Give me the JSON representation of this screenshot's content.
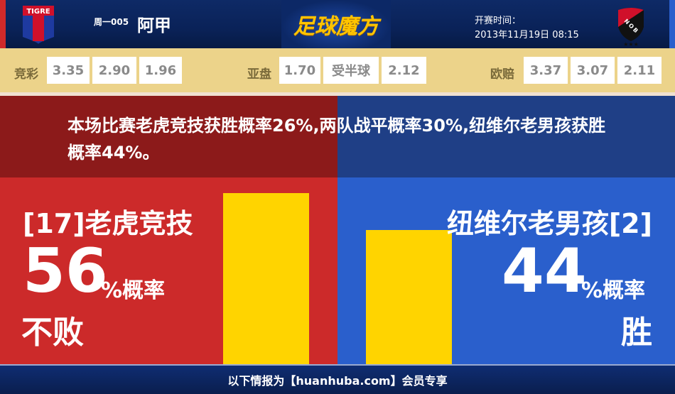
{
  "header": {
    "home_logo_text": "TIGRE",
    "away_logo_text": "NOB",
    "round": "周一005",
    "league": "阿甲",
    "brand": "足球魔方",
    "kickoff_label": "开赛时间：",
    "kickoff_time": "2013年11月19日 08:15"
  },
  "odds": {
    "jingcai": {
      "label": "竞彩",
      "values": [
        "3.35",
        "2.90",
        "1.96"
      ]
    },
    "asian": {
      "label": "亚盘",
      "values": [
        "1.70",
        "受半球",
        "2.12"
      ]
    },
    "euro": {
      "label": "欧赔",
      "values": [
        "3.37",
        "3.07",
        "2.11"
      ]
    }
  },
  "summary": "本场比赛老虎竞技获胜概率26%,两队战平概率30%,纽维尔老男孩获胜概率44%。",
  "home": {
    "team": "[17]老虎竞技",
    "percent": "56",
    "percent_suffix": "%概率",
    "outcome": "不败",
    "probability": 56
  },
  "away": {
    "team": "纽维尔老男孩[2]",
    "percent": "44",
    "percent_suffix": "%概率",
    "outcome": "胜",
    "probability": 44
  },
  "footer": "以下情报为【huanhuba.com】会员专享",
  "colors": {
    "home": "#cc2a2a",
    "away": "#2a5fcc",
    "bar": "#ffd400",
    "odds_bg": "#ecd38a"
  }
}
